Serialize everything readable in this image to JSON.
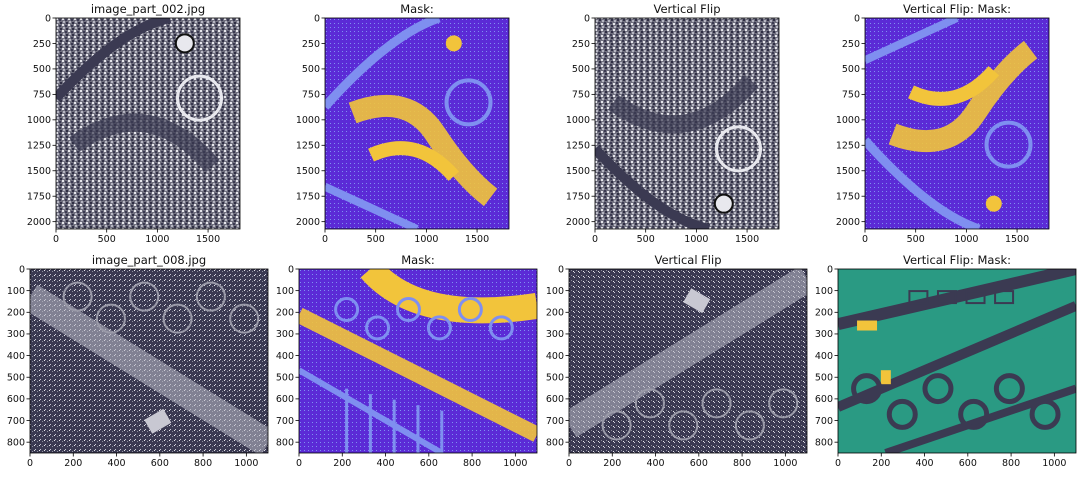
{
  "chart_data": [
    {
      "type": "image",
      "title": "image_part_002.jpg",
      "style": "aerial-gray",
      "xticks": [
        0,
        500,
        1000,
        1500
      ],
      "yticks": [
        0,
        250,
        500,
        750,
        1000,
        1250,
        1500,
        1750,
        2000
      ],
      "xlim": [
        0,
        1815
      ],
      "ylim": [
        0,
        2072
      ]
    },
    {
      "type": "image",
      "title": "Mask:",
      "style": "mask-purple",
      "xticks": [
        0,
        500,
        1000,
        1500
      ],
      "yticks": [
        0,
        250,
        500,
        750,
        1000,
        1250,
        1500,
        1750,
        2000
      ],
      "xlim": [
        0,
        1815
      ],
      "ylim": [
        0,
        2072
      ]
    },
    {
      "type": "image",
      "title": "Vertical Flip",
      "style": "aerial-gray-flipped",
      "xticks": [
        0,
        500,
        1000,
        1500
      ],
      "yticks": [
        0,
        250,
        500,
        750,
        1000,
        1250,
        1500,
        1750,
        2000
      ],
      "xlim": [
        0,
        1815
      ],
      "ylim": [
        0,
        2072
      ]
    },
    {
      "type": "image",
      "title": "Vertical Flip: Mask:",
      "style": "mask-purple-flipped",
      "xticks": [
        0,
        500,
        1000,
        1500
      ],
      "yticks": [
        0,
        250,
        500,
        750,
        1000,
        1250,
        1500,
        1750,
        2000
      ],
      "xlim": [
        0,
        1815
      ],
      "ylim": [
        0,
        2072
      ]
    },
    {
      "type": "image",
      "title": "image_part_008.jpg",
      "style": "aerial-gray",
      "xticks": [
        0,
        200,
        400,
        600,
        800,
        1000
      ],
      "yticks": [
        0,
        100,
        200,
        300,
        400,
        500,
        600,
        700,
        800
      ],
      "xlim": [
        0,
        1100
      ],
      "ylim": [
        0,
        850
      ]
    },
    {
      "type": "image",
      "title": "Mask:",
      "style": "mask-purple",
      "xticks": [
        0,
        200,
        400,
        600,
        800,
        1000
      ],
      "yticks": [
        0,
        100,
        200,
        300,
        400,
        500,
        600,
        700,
        800
      ],
      "xlim": [
        0,
        1100
      ],
      "ylim": [
        0,
        850
      ]
    },
    {
      "type": "image",
      "title": "Vertical Flip",
      "style": "aerial-gray-flipped",
      "xticks": [
        0,
        200,
        400,
        600,
        800,
        1000
      ],
      "yticks": [
        0,
        100,
        200,
        300,
        400,
        500,
        600,
        700,
        800
      ],
      "xlim": [
        0,
        1100
      ],
      "ylim": [
        0,
        850
      ]
    },
    {
      "type": "image",
      "title": "Vertical Flip: Mask:",
      "style": "mask-green",
      "xticks": [
        0,
        200,
        400,
        600,
        800,
        1000
      ],
      "yticks": [
        0,
        100,
        200,
        300,
        400,
        500,
        600,
        700,
        800
      ],
      "xlim": [
        0,
        1100
      ],
      "ylim": [
        0,
        850
      ]
    }
  ],
  "colors": {
    "mask_bg": "#5b2bd6",
    "mask_road": "#7f8ff0",
    "mask_yellow": "#f2c43b",
    "green_bg": "#2a9a83",
    "dark": "#3b3a52",
    "gray": "#8d8d9a",
    "light": "#e8e8ee"
  }
}
